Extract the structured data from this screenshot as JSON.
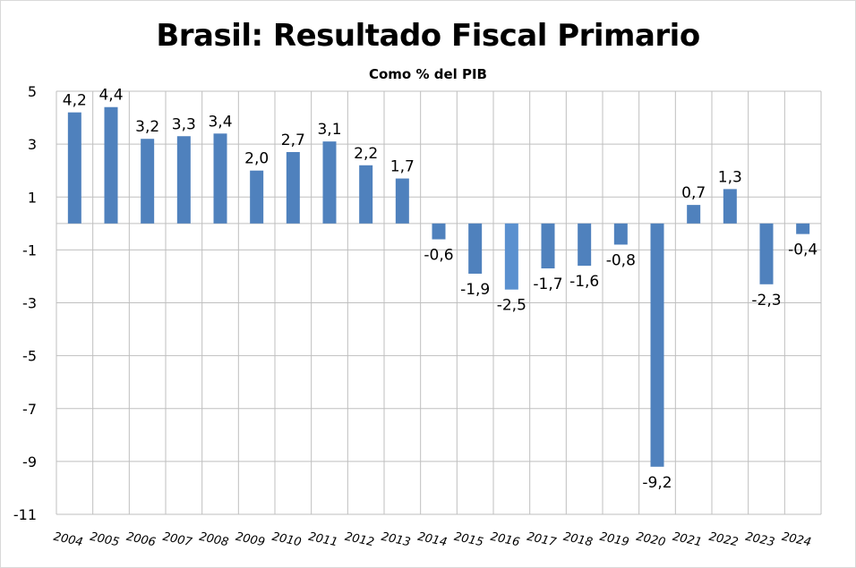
{
  "chart_data": {
    "type": "bar",
    "title": "Brasil: Resultado Fiscal Primario",
    "subtitle": "Como % del PIB",
    "xlabel": "",
    "ylabel": "",
    "ylim": [
      -11,
      5
    ],
    "yticks": [
      5,
      3,
      1,
      -1,
      -3,
      -5,
      -7,
      -9,
      -11
    ],
    "grid": true,
    "bar_color": "#4f81bd",
    "categories": [
      "2004",
      "2005",
      "2006",
      "2007",
      "2008",
      "2009",
      "2010",
      "2011",
      "2012",
      "2013",
      "2014",
      "2015",
      "2016",
      "2017",
      "2018",
      "2019",
      "2020",
      "2021",
      "2022",
      "2023",
      "2024"
    ],
    "values": [
      4.2,
      4.4,
      3.2,
      3.3,
      3.4,
      2.0,
      2.7,
      3.1,
      2.2,
      1.7,
      -0.6,
      -1.9,
      -2.5,
      -1.7,
      -1.6,
      -0.8,
      -9.2,
      0.7,
      1.3,
      -2.3,
      -0.4
    ],
    "data_labels": [
      "4,2",
      "4,4",
      "3,2",
      "3,3",
      "3,4",
      "2,0",
      "2,7",
      "3,1",
      "2,2",
      "1,7",
      "-0,6",
      "-1,9",
      "-2,5",
      "-1,7",
      "-1,6",
      "-0,8",
      "-9,2",
      "0,7",
      "1,3",
      "-2,3",
      "-0,4"
    ]
  }
}
